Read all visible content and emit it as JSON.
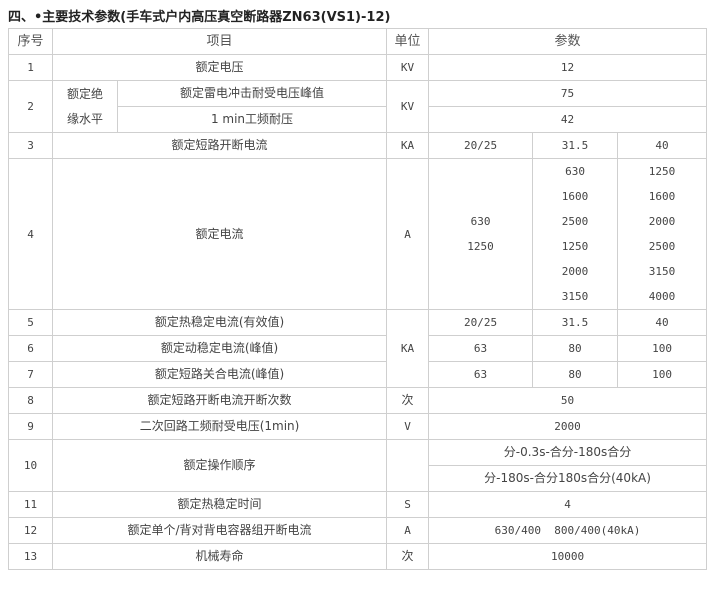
{
  "title": "四、•主要技术参数(手车式户内高压真空断路器ZN63(VS1)-12)",
  "headers": {
    "no": "序号",
    "item": "项目",
    "unit": "单位",
    "param": "参数"
  },
  "rows": {
    "r1": {
      "no": "1",
      "item": "额定电压",
      "unit": "KV",
      "value": "12"
    },
    "r2": {
      "no": "2",
      "group": "额定绝缘水平",
      "group_l1": "额定绝",
      "group_l2": "缘水平",
      "item_a": "额定雷电冲击耐受电压峰值",
      "item_b": "1 min工频耐压",
      "unit": "KV",
      "value_a": "75",
      "value_b": "42"
    },
    "r3": {
      "no": "3",
      "item": "额定短路开断电流",
      "unit": "KA",
      "v1": "20/25",
      "v2": "31.5",
      "v3": "40"
    },
    "r4": {
      "no": "4",
      "item": "额定电流",
      "unit": "A",
      "c1": [
        "630",
        "1250"
      ],
      "c2": [
        "630",
        "1600",
        "2500",
        "1250",
        "2000",
        "3150"
      ],
      "c3": [
        "1250",
        "1600",
        "2000",
        "2500",
        "3150",
        "4000"
      ]
    },
    "r5": {
      "no": "5",
      "item": "额定热稳定电流(有效值)",
      "v1": "20/25",
      "v2": "31.5",
      "v3": "40"
    },
    "r6": {
      "no": "6",
      "item": "额定动稳定电流(峰值)",
      "v1": "63",
      "v2": "80",
      "v3": "100"
    },
    "r7": {
      "no": "7",
      "item": "额定短路关合电流(峰值)",
      "v1": "63",
      "v2": "80",
      "v3": "100"
    },
    "r567_unit": "KA",
    "r8": {
      "no": "8",
      "item": "额定短路开断电流开断次数",
      "unit": "次",
      "value": "50"
    },
    "r9": {
      "no": "9",
      "item": "二次回路工频耐受电压(1min)",
      "unit": "V",
      "value": "2000"
    },
    "r10": {
      "no": "10",
      "item": "额定操作顺序",
      "unit": "",
      "value_a": "分-0.3s-合分-180s合分",
      "value_b": "分-180s-合分180s合分(40kA)"
    },
    "r11": {
      "no": "11",
      "item": "额定热稳定时间",
      "unit": "S",
      "value": "4"
    },
    "r12": {
      "no": "12",
      "item": "额定单个/背对背电容器组开断电流",
      "unit": "A",
      "value": "630/400  800/400(40kA)"
    },
    "r13": {
      "no": "13",
      "item": "机械寿命",
      "unit": "次",
      "value": "10000"
    }
  }
}
